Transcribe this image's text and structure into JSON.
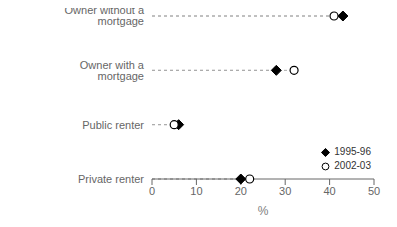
{
  "chart_data": {
    "type": "dot",
    "orientation": "horizontal",
    "categories": [
      "Owner without a mortgage",
      "Owner with a mortgage",
      "Public renter",
      "Private renter"
    ],
    "series": [
      {
        "name": "1995-96",
        "color": "#000000",
        "marker": "diamond",
        "values": [
          43,
          28,
          6,
          20
        ]
      },
      {
        "name": "2002-03",
        "color": "#000000",
        "marker": "open_circle",
        "values": [
          41,
          32,
          5,
          22
        ]
      }
    ],
    "xlabel": "%",
    "xlim": [
      0,
      50
    ],
    "xticks": [
      0,
      10,
      20,
      30,
      40,
      50
    ],
    "line_style": "dashed",
    "legend": "lower right",
    "grid": false
  }
}
